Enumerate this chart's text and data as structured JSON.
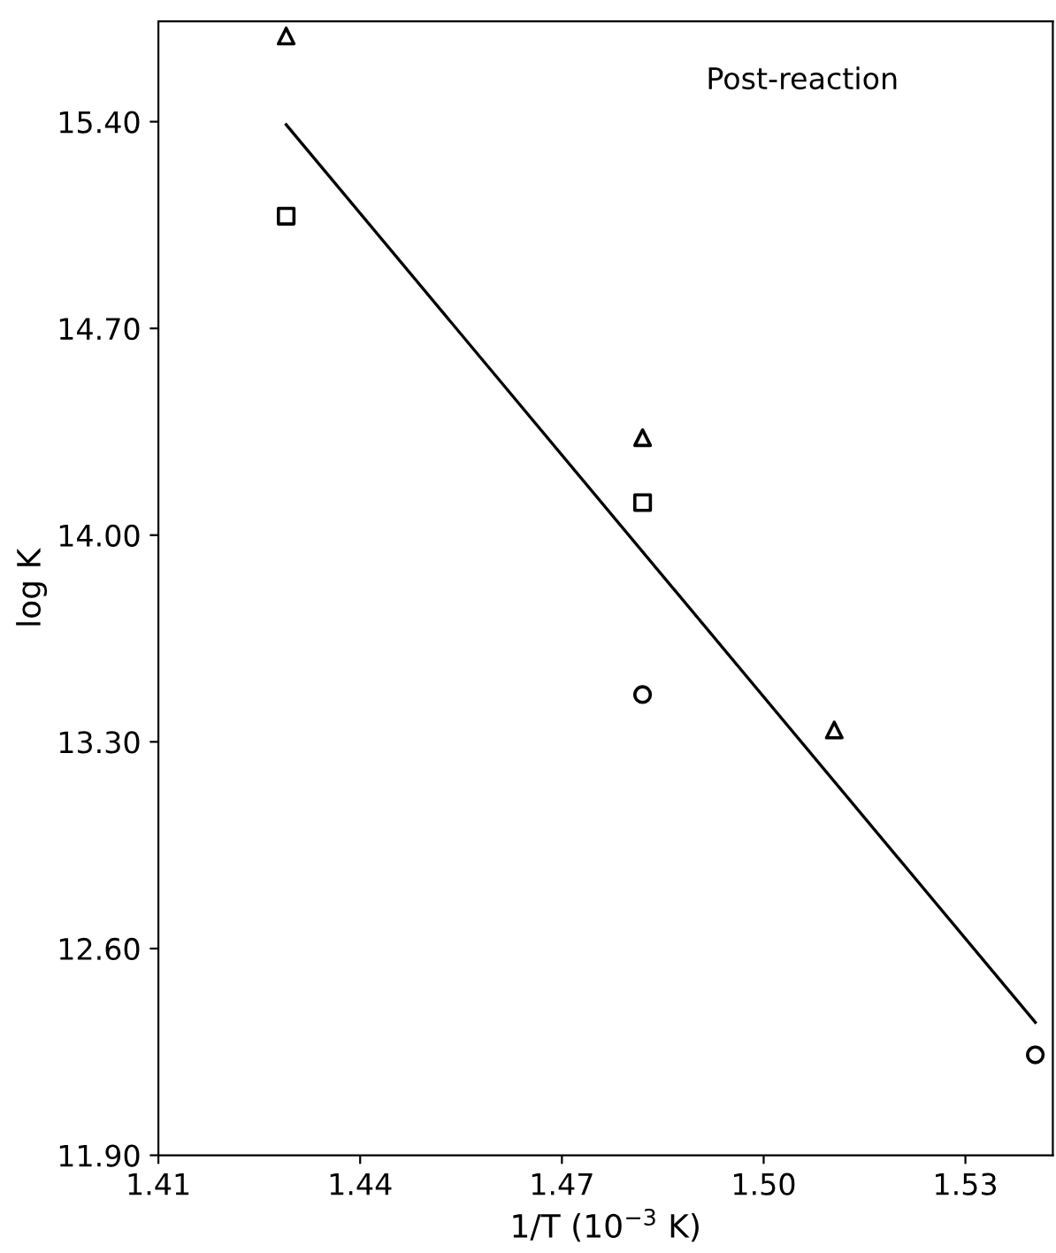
{
  "chart_data": {
    "type": "scatter",
    "xlabel": "1/T (10$^{−3}$ K)",
    "ylabel": "log K",
    "annotations": [
      "Post-reaction"
    ],
    "series": [
      {
        "marker": "triangle",
        "color": "#000000",
        "x": [
          1.429,
          1.482,
          1.5105
        ],
        "values": [
          15.69,
          14.33,
          13.34
        ]
      },
      {
        "marker": "square",
        "color": "#000000",
        "x": [
          1.429,
          1.482
        ],
        "values": [
          15.08,
          14.11
        ]
      },
      {
        "marker": "circle",
        "color": "#000000",
        "x": [
          1.482,
          1.5404
        ],
        "values": [
          13.46,
          12.24
        ]
      },
      {
        "type": "line",
        "marker": "none",
        "line_style": "solid",
        "color": "#000000",
        "x": [
          1.429,
          1.5404
        ],
        "values": [
          15.39,
          12.35
        ]
      }
    ],
    "xlim": [
      1.41,
      1.543
    ],
    "xticks": [
      {
        "value": 1.41,
        "label": "1.41"
      },
      {
        "value": 1.44,
        "label": "1.44"
      },
      {
        "value": 1.47,
        "label": "1.47"
      },
      {
        "value": 1.5,
        "label": "1.50"
      },
      {
        "value": 1.53,
        "label": "1.53"
      }
    ],
    "ylim": [
      11.9,
      15.74
    ],
    "yticks": [
      {
        "value": 11.9,
        "label": "11.90"
      },
      {
        "value": 12.6,
        "label": "12.60"
      },
      {
        "value": 13.3,
        "label": "13.30"
      },
      {
        "value": 14.0,
        "label": "14.00"
      },
      {
        "value": 14.7,
        "label": "14.70"
      },
      {
        "value": 15.4,
        "label": "15.40"
      }
    ],
    "grid": false,
    "legend": false
  }
}
